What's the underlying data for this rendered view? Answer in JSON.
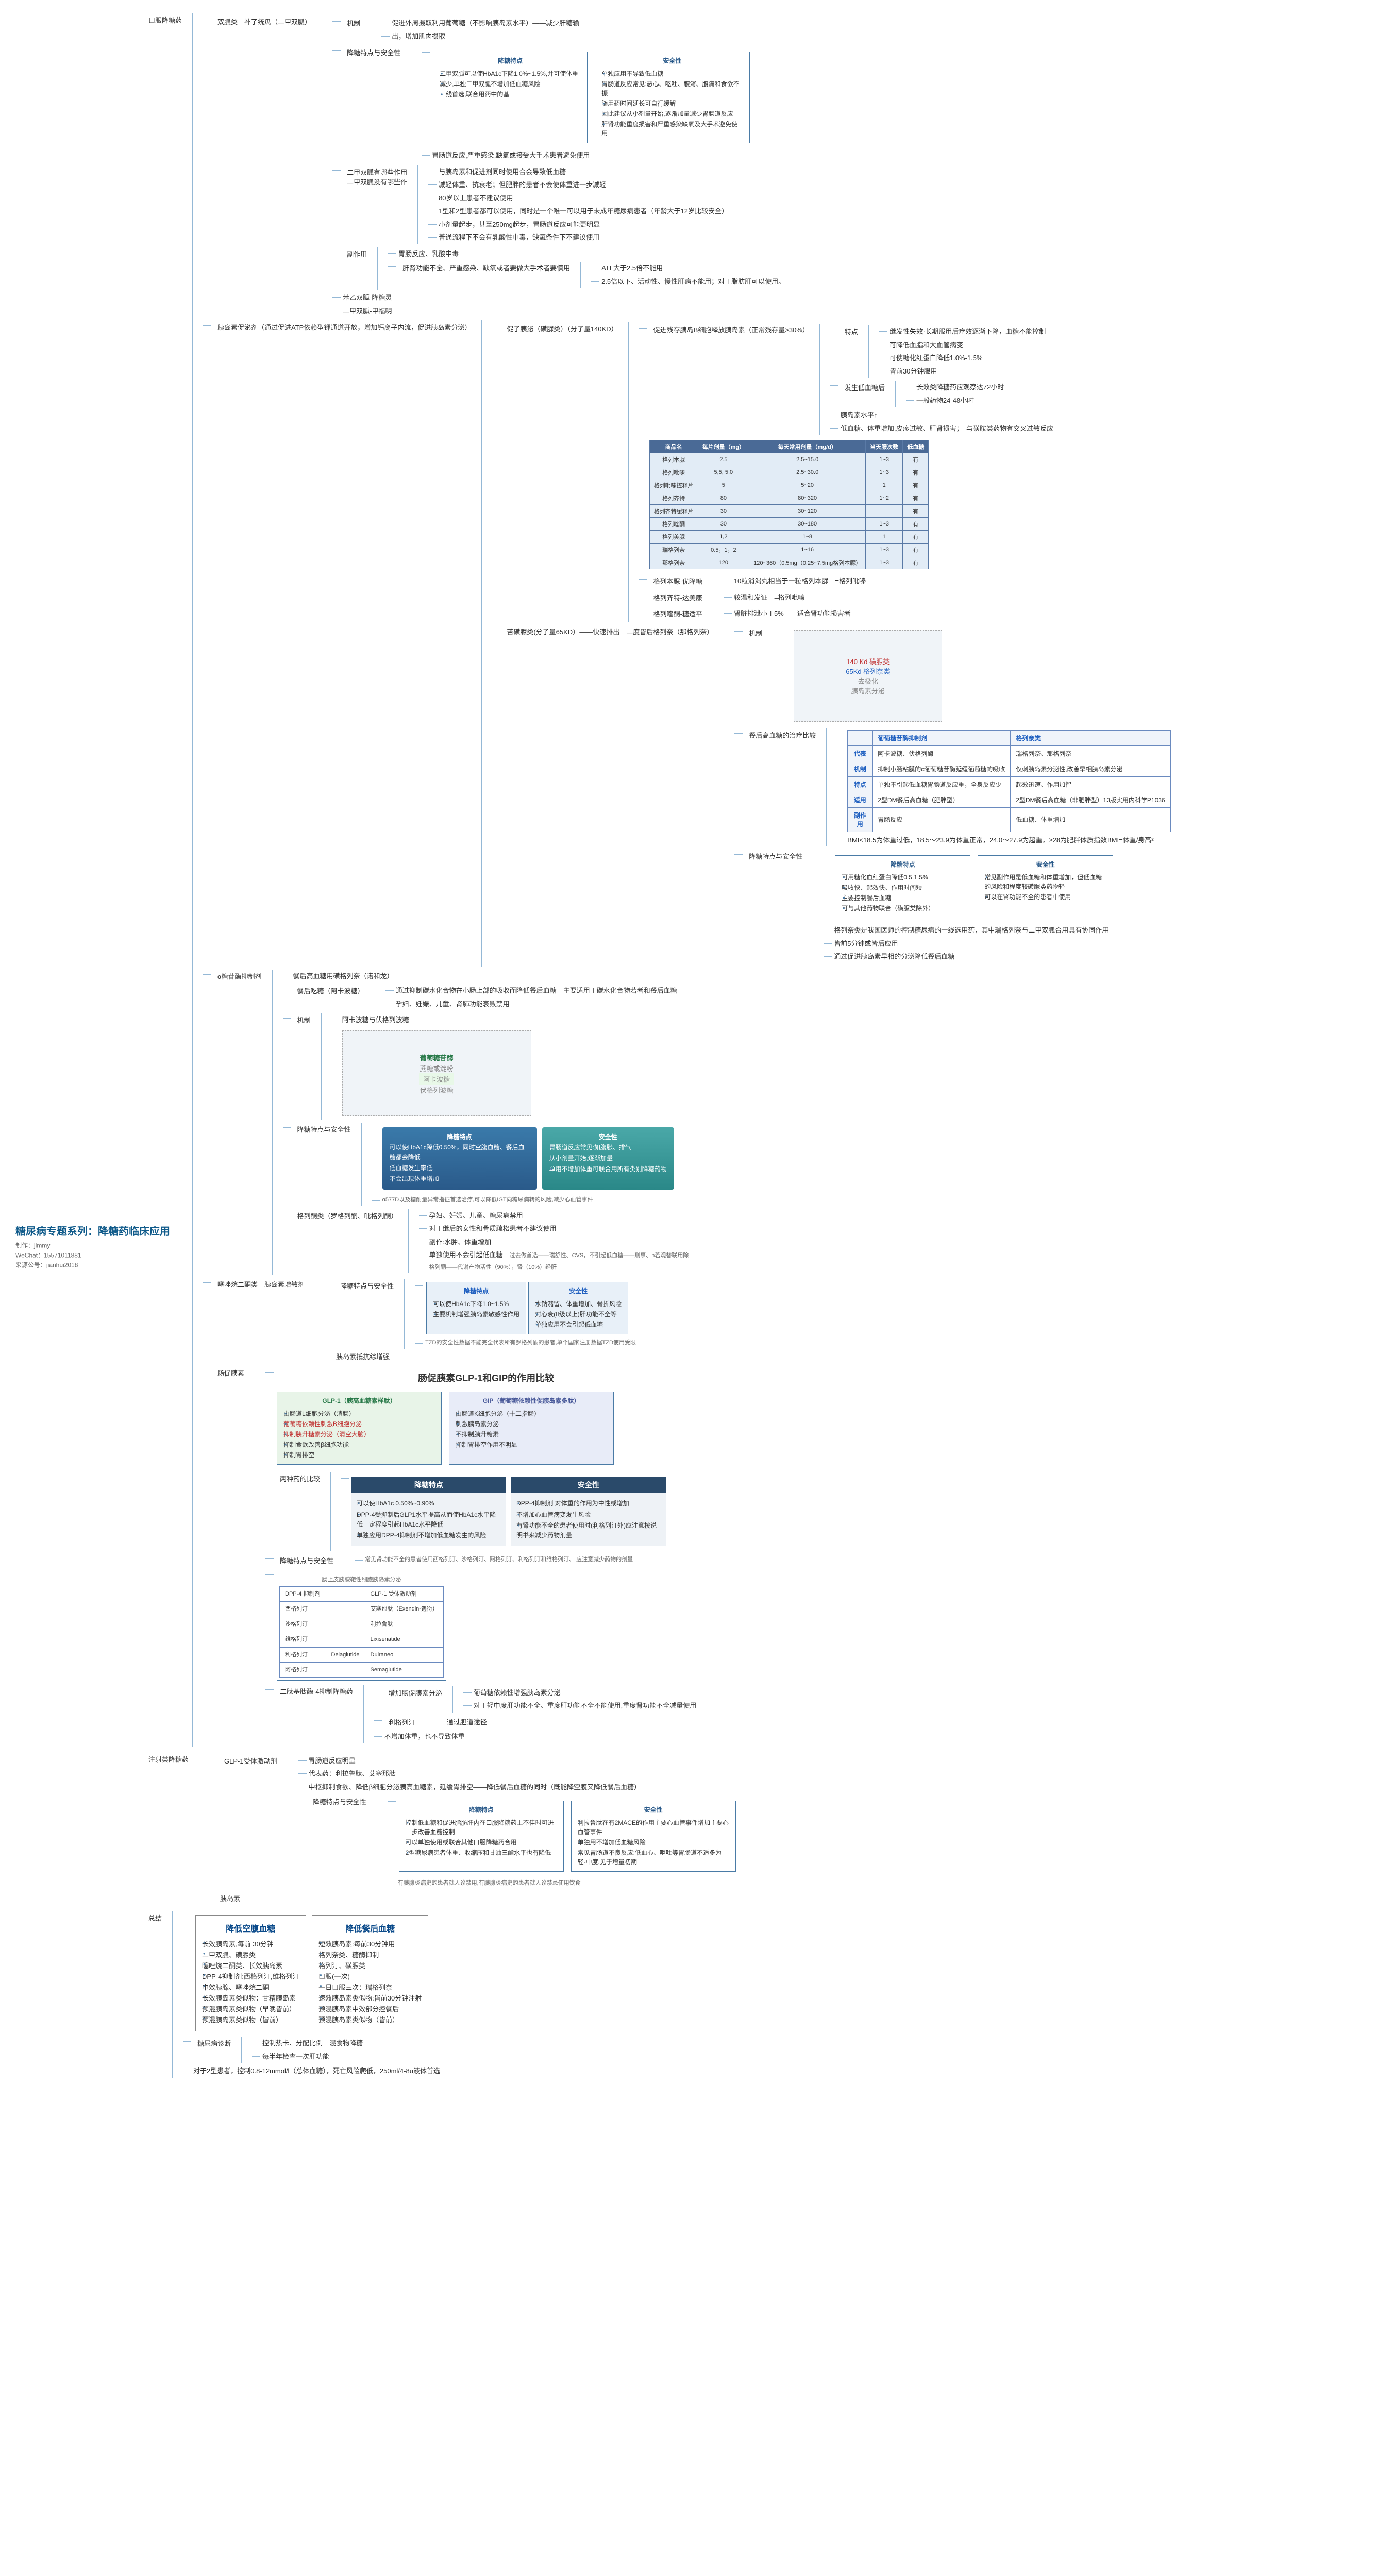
{
  "root": {
    "title": "糖尿病专题系列：降糖药临床应用",
    "author": "制作：jimmy",
    "wechat": "WeChat：15571011881",
    "source": "来源公号：jianhui2018"
  },
  "branches": {
    "oral": "口服降糖药",
    "inject": "注射类降糖药",
    "summary": "总结"
  },
  "biguanide": {
    "name": "双胍类",
    "sub": "补了统瓜（二甲双胍）",
    "mech_lbl": "机制",
    "mech1": "促进外周摄取利用葡萄糖（不影响胰岛素水平）——减少肝糖输",
    "mech2": "出，增加肌肉摄取",
    "effect_safety_lbl": "降糖特点与安全性",
    "effect_box_title": "降糖特点",
    "effect_items": [
      "二甲双胍可以使HbA1c下降1.0%~1.5%,并可使体重",
      "减少,单独二甲双胍不增加低血糖风险",
      "一线首选,联合用药中的基"
    ],
    "safety_box_title": "安全性",
    "safety_items": [
      "单独应用不导致低血糖",
      "胃肠道反应常见:恶心、呕吐、腹泻、腹痛和食欲不振",
      "随用药时间延长可自行缓解",
      "因此建议从小剂量开始,逐渐加量减少胃肠道反应",
      "肝肾功能重度损害和严重感染缺氧及大手术避免使用"
    ],
    "effect_safety_note": "胃肠道反应,严重感染,缺氧或接受大手术患者避免使用",
    "contra_lbl": "二甲双胍有哪些作用",
    "contra_sub": "二甲双胍没有哪些作",
    "contra_list": [
      "与胰岛素和促进剂同时使用合会导致低血糖",
      "减轻体重、抗衰老；但肥胖的患者不会使体重进一步减轻",
      "80岁以上患者不建议使用",
      "1型和2型患者都可以使用，同时是一个唯一可以用于未成年糖尿病患者（年龄大于12岁比较安全）",
      "小剂量起步，甚至250mg起步，胃肠道反应可能更明显",
      "普通流程下不会有乳酸性中毒，缺氧条件下不建议使用"
    ],
    "side_lbl": "副作用",
    "side_txt": "胃肠反应、乳酸中毒",
    "side_liver": "肝肾功能不全、严重感染、缺氧或者要做大手术者要慎用",
    "side_atl1": "ATL大于2.5倍不能用",
    "side_atl2": "2.5倍以下、活动性、慢性肝病不能用；对于脂肪肝可以使用。",
    "other1": "苯乙双胍-降糖灵",
    "other2": "二甲双胍-甲福明"
  },
  "sulfonylurea": {
    "name": "促子胰泌（磺脲类）（分子量140KD）",
    "mech_lbl": "促进残存胰岛B细胞释放胰岛素（正常残存量>30%）",
    "features_lbl": "特点",
    "features": [
      "继发性失效·长期服用后疗效逐渐下降，血糖不能控制",
      "可降低血脂和大血管病变",
      "可使糖化红蛋白降低1.0%-1.5%",
      "皆前30分钟服用"
    ],
    "hypo_lbl": "发生低血糖后",
    "hypo1": "长效类降糖药应观察达72小时",
    "hypo2": "一般药物24-48小时",
    "insulin_lvl": "胰岛素水平↑",
    "side_txt": "低血糖、体重增加,皮疹过敏、肝肾损害；　与磺胺类药物有交叉过敏反应",
    "table_headers": [
      "商品名",
      "每片剂量（mg）",
      "每天常用剂量（mg/d）",
      "当天服次数",
      "低血糖"
    ],
    "table_rows": [
      [
        "格列本脲",
        "2.5",
        "2.5~15.0",
        "1~3",
        "有"
      ],
      [
        "格列吡嗪",
        "5,5, 5,0",
        "2.5~30.0",
        "1~3",
        "有"
      ],
      [
        "格列吡嗪控释片",
        "5",
        "5~20",
        "1",
        "有"
      ],
      [
        "格列齐特",
        "80",
        "80~320",
        "1~2",
        "有"
      ],
      [
        "格列齐特缓释片",
        "30",
        "30~120",
        "",
        "有"
      ],
      [
        "格列喹酮",
        "30",
        "30~180",
        "1~3",
        "有"
      ],
      [
        "格列美脲",
        "1,2",
        "1~8",
        "1",
        "有"
      ],
      [
        "瑞格列奈",
        "0.5，1，2",
        "1~16",
        "1~3",
        "有"
      ],
      [
        "那格列奈",
        "120",
        "120~360（0.5mg（0.25~7.5mg格列本脲）",
        "1~3",
        "有"
      ]
    ],
    "gliben": {
      "lbl": "格列本脲-优降糖",
      "txt": "10粒消渴丸相当于一粒格列本脲",
      "note": "=格列吡嗪"
    },
    "glq": {
      "lbl": "格列齐特-达美康",
      "txt": "较温和发证",
      "note": "=格列吡嗪"
    },
    "glk": {
      "lbl": "格列喹酮-糖适平",
      "txt": "肾脏排泄小于5%——适合肾功能损害者"
    }
  },
  "glinide": {
    "name": "苦磺脲类(分子量65KD）——快速排出",
    "sub": "二度皆后格列奈（那格列奈）",
    "img_lbl": "机制",
    "img_note_top": "140 Kd 磺脲类",
    "img_note_mid": "65Kd 格列奈类",
    "img_note_right": "去极化",
    "img_note_bottom": "胰岛素分泌",
    "compare_lbl": "餐后高血糖的治疗比较",
    "ct_h1": "葡萄糖苷酶抑制剂",
    "ct_h2": "格列奈类",
    "ct_rows": [
      [
        "代表",
        "阿卡波糖、伏格列酶",
        "瑞格列奈、那格列奈"
      ],
      [
        "机制",
        "抑制小肠粘膜的α葡萄糖苷酶延缓葡萄糖的吸收",
        "仅刺胰岛素分泌性,改善早相胰岛素分泌"
      ],
      [
        "特点",
        "单独不引起低血糖胃肠道反应重，全身反应少",
        "起效迅速、作用加智"
      ],
      [
        "适用",
        "2型DM餐后高血糖（肥胖型）",
        "2型DM餐后高血糖（非肥胖型）13版实用内科学P1036"
      ],
      [
        "副作用",
        "胃肠反应",
        "低血糖、体重增加"
      ]
    ],
    "bmi_txt": "BMI<18.5为体重过低，18.5～23.9为体重正常，24.0～27.9为超重，≥28为肥胖体质指数BMI=体重/身高²",
    "effect_safety_lbl": "降糖特点与安全性",
    "effect_title": "降糖特点",
    "effect_items": [
      "可用糖化血红蛋白降低0.5.1.5%",
      "吸收快、起效快、作用时间短",
      "主要控制餐后血糖",
      "可与其他药物联合（磺脲类除外）"
    ],
    "safety_title": "安全性",
    "safety_items": [
      "常见副作用是低血糖和体重增加，但低血糖的风险和程度较磺脲类药物轻",
      "可以在肾功能不全的患者中使用"
    ],
    "notes": [
      "格列奈类是我国医师的控制糖尿病的一线选用药，其中瑞格列奈与二甲双胍合用具有协同作用",
      "皆前5分钟或皆后应用",
      "通过促进胰岛素早相的分泌降低餐后血糖"
    ]
  },
  "agi": {
    "name": "α糖苷酶抑制剂",
    "line1": "餐后高血糖用磺格列奈（诺和龙）",
    "sub_lbl": "餐后吃糖（阿卡波糖）",
    "sub_txt": "通过抑制碳水化合物在小肠上部的吸收而降低餐后血糖",
    "sub_note": "主要适用于碳水化合物若者和餐后血糖",
    "contra": "孕妇、妊娠、儿童、肾肺功能衰败禁用",
    "mech_lbl": "机制",
    "mech_txt": "阿卡波糖与伏格列波糖",
    "diagram_title": "葡萄糖苷酶",
    "diagram_labels": [
      "蔗糖或淀粉",
      "阿卡波糖",
      "伏格列波糖"
    ],
    "effect_title": "降糖特点",
    "effect_items": [
      "可以使HbA1c降低0.50%，同时空腹血糖、餐后血糖都会降低",
      "低血糖发生率低",
      "不会出现体重增加"
    ],
    "safety_title": "安全性",
    "safety_items": [
      "胃肠道反应常见:如腹胀、排气",
      "从小剂量开始,逐渐加量",
      "单用不增加体重可联合用所有类别降糖药物"
    ],
    "es_lbl": "降糖特点与安全性",
    "es_note": "α577D以及糖耐量异常指征首选治疗,可以降低IGT向糖尿病转的风险,减少心血管事件",
    "gl_lbl": "格列酮类（罗格列酮、吡格列酮）",
    "gl1": "孕妇、妊娠、儿童、糖尿病禁用",
    "gl2": "对于继后的女性和骨质疏松患者不建议使用",
    "gl3": "副作:水肿、体重增加",
    "gl4": "单独使用不会引起低血糖",
    "gl_note": "过去做首选——瑞舒性、CVS，不引起低血糖——刑事、n若观替联用除",
    "gl_note2": "格列酮——代谢产物活性（90%），肾（10%）经肝"
  },
  "tzd": {
    "name": "噻唑烷二酮类",
    "sub": "胰岛素增敏剂",
    "es_lbl": "降糖特点与安全性",
    "effect_title": "降糖特点",
    "effect_items": [
      "可以使HbA1c下降1.0~1.5%",
      "主要机制增强胰岛素敏感性作用"
    ],
    "safety_title": "安全性",
    "safety_items": [
      "水钠潴留、体重增加、骨折风险",
      "对心衰(II级以上)肝功能不全等",
      "单独应用不会引起低血糖"
    ],
    "es_note": "TZD的安全性数据不能完全代表所有罗格列酮的患者,单个国家注册数据TZD使用受限",
    "resist": "胰岛素抵抗综增强"
  },
  "glp": {
    "name": "肠促胰素",
    "title_img": "肠促胰素GLP-1和GIP的作用比较",
    "glp1_box": {
      "title": "GLP-1（胰高血糖素样肽）",
      "items": [
        "由肠道L细胞分泌（消肠）",
        "葡萄糖依赖性刺激B细胞分泌",
        "抑制胰升糖素分泌（清空大脑）",
        "抑制食欲改善β细胞功能",
        "抑制胃排空"
      ]
    },
    "gip_box": {
      "title": "GIP（葡萄糖依赖性促胰岛素多肽）",
      "items": [
        "由肠道K细胞分泌（十二指肠）",
        "刺激胰岛素分泌",
        "不抑制胰升糖素",
        "抑制胃排空作用不明显"
      ]
    },
    "two_lbl": "两种药的比较",
    "card_eff": {
      "title": "降糖特点",
      "items": [
        "可以使HbA1c 0.50%~0.90%",
        "DPP-4受抑制后GLP1水平提高从而使HbA1c水平降低一定程度引起HbA1c水平降低",
        "单独应用DPP-4抑制剂不增加低血糖发生的风险"
      ]
    },
    "card_safe": {
      "title": "安全性",
      "items": [
        "DPP-4抑制剂 对体重的作用为中性或增加",
        "不增加心血管病变发生风险",
        "有肾功能不全的患者使用时(利格列汀外)应注意按说明书来减少药物剂量"
      ]
    },
    "es_lbl": "降糖特点与安全性",
    "es_note": "常见肾功能不全的患者使用西格列汀、沙格列汀、阿格列汀、利格列汀和维格列汀、 应注意减少药物的剂量",
    "dpp_img_lbl": "肠上皮胰腺靶性细胞胰岛素分泌",
    "dpp_table_rows": [
      [
        "DPP-4 抑制剂",
        "",
        "GLP-1 受体激动剂"
      ],
      [
        "西格列汀",
        "",
        "艾塞那肽（Exendin-遇衍）"
      ],
      [
        "沙格列汀",
        "",
        "利拉鲁肽"
      ],
      [
        "维格列汀",
        "",
        "Lixisenatide"
      ],
      [
        "利格列汀",
        "Delaglutide",
        "Dulraneo"
      ],
      [
        "阿格列汀",
        "",
        "Semaglutide"
      ]
    ],
    "dpp_lbl": "二肽基肽酶-4抑制降糖药",
    "dpp1": "增加肠促胰素分泌",
    "dpp1a": "葡萄糖依赖性增强胰岛素分泌",
    "dpp1b": "对于轻中度肝功能不全、重度肝功能不全不能使用,重度肾功能不全减量使用",
    "dpp2": "利格列汀",
    "dpp2a": "通过胆道途径",
    "dpp3": "不增加体重，也不导致体重"
  },
  "glp1ra": {
    "name": "GLP-1受体激动剂",
    "side_lbl": "胃肠道反应明显",
    "rep": "代表药：利拉鲁肽、艾塞那肽",
    "mech": "中枢抑制食欲、降低β细胞分泌胰高血糖素，延缓胃排空——降低餐后血糖的同时（既能降空腹又降低餐后血糖）",
    "effect_title": "降糖特点",
    "effect_items": [
      "控制低血糖和促进脂肪肝内在口服降糖药上不佳时可进一步改善血糖控制",
      "可以单独使用或联合其他口服降糖药合用",
      "2型糖尿病患者体重、收缩压和甘油三酯水平也有降低"
    ],
    "safety_title": "安全性",
    "safety_items": [
      "利拉鲁肽在有2MACE的作用主要心血管事件增加主要心血管事件",
      "单独用不增加低血糖风险",
      "常见胃肠道不良反应:低血心、呕吐等胃肠道不适多为轻-中度,见于增量初期"
    ],
    "es_lbl": "降糖特点与安全性",
    "es_note": "有胰腺炎病史的患者就人诊禁用,有胰腺炎病史的患者就人诊禁忌使用饮食"
  },
  "insulin": {
    "name": "胰岛素"
  },
  "summary": {
    "fast_title": "降低空腹血糖",
    "fast_items": [
      "长效胰岛素,每前 30分钟",
      "二甲双胍、磺脲类",
      "噻唑烷二酮类、长效胰岛素",
      "DPP-4抑制剂:西格列汀,维格列汀",
      "中效胰腺、噻唑烷二酮",
      "长效胰岛素类似物：甘精胰岛素",
      "预混胰岛素类似物（早晚皆前）",
      "预混胰岛素类似物（皆前）"
    ],
    "post_title": "降低餐后血糖",
    "post_items": [
      "短效胰岛素:每前30分钟用",
      "格列奈类、糖酶抑制",
      "格列汀、磺脲类",
      "口服(一次)",
      "一日口服三次：瑞格列奈",
      "速效胰岛素类似物:皆前30分钟注射",
      "预混胰岛素中效部分控餐后",
      "预混胰岛素类似物（皆前）"
    ],
    "mon_lbl": "糖尿病诊断",
    "mon1": "控制热卡、分配比例",
    "mon2": "混食物降糖",
    "mon3": "每半年检查一次肝功能",
    "dm2": "对于2型患者，控制0.8-12mmol/l（总体血糖），死亡风险爬低，250ml/4-8u液体首选"
  }
}
